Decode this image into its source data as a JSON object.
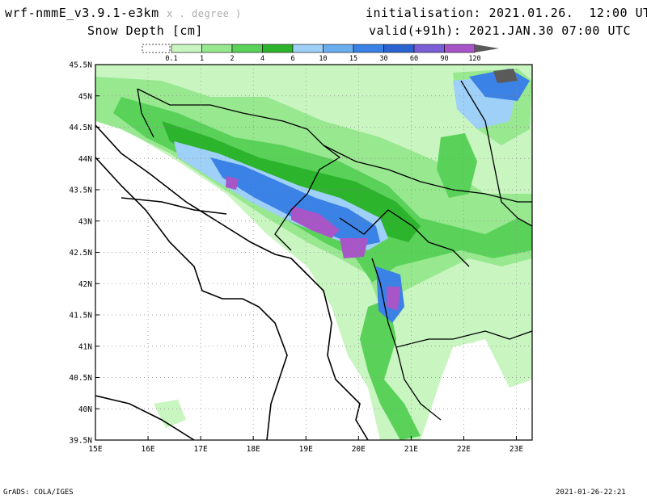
{
  "header": {
    "model": "wrf-nmmE_v3.9.1-e3km",
    "units_note": "x . degree )",
    "field": "Snow Depth [cm]",
    "initialisation": "initialisation: 2021.01.26.  12:00 UTC",
    "valid": "valid(+91h): 2021.JAN.30 07:00 UTC"
  },
  "colorbar": {
    "ticks": [
      "0.1",
      "1",
      "2",
      "4",
      "6",
      "10",
      "15",
      "30",
      "60",
      "90",
      "120"
    ],
    "colors": [
      "#c8f5c0",
      "#98e890",
      "#5ad25a",
      "#2db42d",
      "#9fd0f8",
      "#6aaef0",
      "#3b82e6",
      "#2b64d0",
      "#7a5fd6",
      "#a855c8",
      "#5a5a5a"
    ]
  },
  "map": {
    "lat_labels": [
      "45.5N",
      "45N",
      "44.5N",
      "44N",
      "43.5N",
      "43N",
      "42.5N",
      "42N",
      "41.5N",
      "41N",
      "40.5N",
      "40N",
      "39.5N"
    ],
    "lon_labels": [
      "15E",
      "16E",
      "17E",
      "18E",
      "19E",
      "20E",
      "21E",
      "22E",
      "23E"
    ],
    "extent": {
      "lon": [
        15,
        23.3
      ],
      "lat": [
        39.5,
        45.5
      ]
    },
    "grid": "dotted",
    "colors": {
      "land_light": "#c8f5c0",
      "land_mid": "#98e890",
      "green": "#5ad25a",
      "dark_green": "#2db42d",
      "light_blue": "#9fd0f8",
      "blue": "#3b82e6",
      "purple": "#a855c8",
      "grey": "#5a5a5a"
    }
  },
  "footer": {
    "left": "GrADS: COLA/IGES",
    "right": "2021-01-26-22:21"
  }
}
